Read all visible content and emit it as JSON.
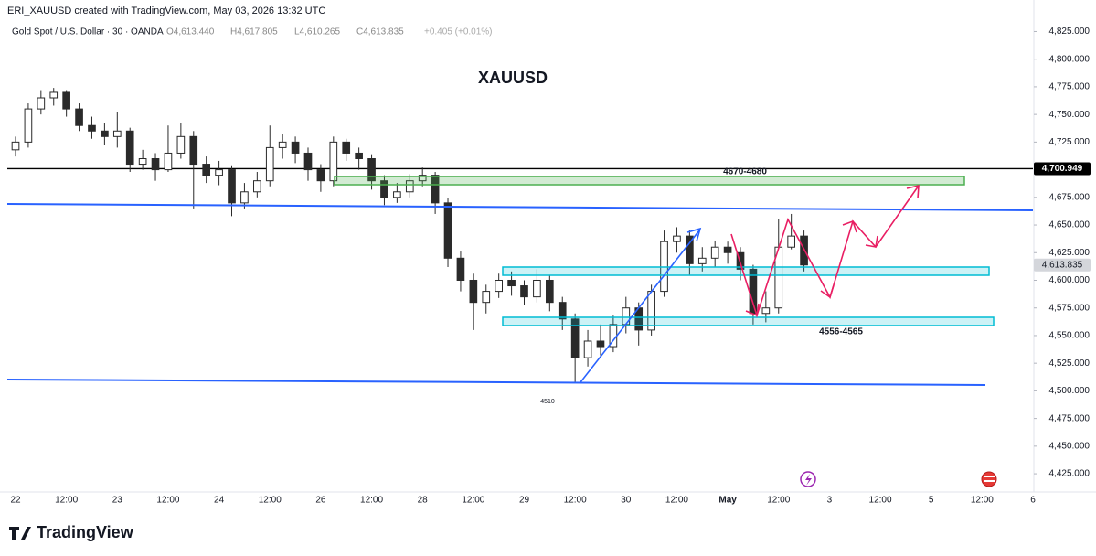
{
  "header": {
    "credit": "ERI_XAUUSD created with TradingView.com, May 03, 2026 13:32 UTC",
    "logo": "TradingView"
  },
  "chart_data": {
    "type": "candlestick",
    "title": "XAUUSD",
    "legend": {
      "symbol": "Gold Spot / U.S. Dollar · 30 · OANDA",
      "open": "O4,613.440",
      "high": "H4,617.805",
      "low": "L4,610.265",
      "close": "C4,613.835",
      "change": "+0.405 (+0.01%)"
    },
    "categories": [
      "22",
      null,
      null,
      null,
      "12:00",
      null,
      null,
      null,
      "23",
      null,
      null,
      null,
      "12:00",
      null,
      null,
      null,
      "24",
      null,
      null,
      null,
      "12:00",
      null,
      null,
      null,
      "26",
      null,
      null,
      null,
      "12:00",
      null,
      null,
      null,
      "28",
      null,
      null,
      null,
      "12:00",
      null,
      null,
      null,
      "29",
      null,
      null,
      null,
      "12:00",
      null,
      null,
      null,
      "30",
      null,
      null,
      null,
      "12:00",
      null,
      null,
      null,
      "May",
      null,
      null,
      null,
      "12:00",
      null,
      null,
      null,
      "3",
      null,
      null,
      null,
      "12:00",
      null,
      null,
      null,
      "5",
      null,
      null,
      null,
      "12:00",
      null,
      null,
      null,
      "6"
    ],
    "open": [
      4718,
      4725,
      4755,
      4765,
      4770,
      4755,
      4740,
      4735,
      4730,
      4735,
      4705,
      4710,
      4700,
      4715,
      4730,
      4705,
      4695,
      4700,
      4670,
      4680,
      4690,
      4720,
      4725,
      4715,
      4700,
      4690,
      4725,
      4715,
      4710,
      4690,
      4675,
      4680,
      4690,
      4695,
      4670,
      4620,
      4600,
      4580,
      4590,
      4600,
      4595,
      4585,
      4600,
      4580,
      4565,
      4530,
      4545,
      4540,
      4560,
      4575,
      4555,
      4590,
      4635,
      4640,
      4615,
      4620,
      4630,
      4625,
      4610,
      4570,
      4575,
      4630,
      4640,
      null,
      null,
      null,
      null,
      null,
      null,
      null,
      null,
      null,
      null,
      null,
      null,
      null,
      null,
      null,
      null,
      null,
      null
    ],
    "high": [
      4730,
      4760,
      4772,
      4774,
      4772,
      4760,
      4748,
      4742,
      4752,
      4738,
      4718,
      4715,
      4740,
      4742,
      4735,
      4712,
      4708,
      4704,
      4688,
      4698,
      4740,
      4732,
      4730,
      4720,
      4705,
      4730,
      4728,
      4720,
      4714,
      4695,
      4688,
      4696,
      4702,
      4698,
      4674,
      4626,
      4606,
      4596,
      4606,
      4608,
      4600,
      4610,
      4605,
      4585,
      4570,
      4555,
      4560,
      4568,
      4585,
      4580,
      4596,
      4645,
      4648,
      4645,
      4630,
      4636,
      4635,
      4630,
      4614,
      4590,
      4655,
      4660,
      4645,
      null,
      null,
      null,
      null,
      null,
      null,
      null,
      null,
      null,
      null,
      null,
      null,
      null,
      null,
      null,
      null,
      null,
      null
    ],
    "low": [
      4712,
      4720,
      4750,
      4758,
      4748,
      4735,
      4728,
      4722,
      4720,
      4698,
      4700,
      4690,
      4698,
      4710,
      4665,
      4688,
      4686,
      4658,
      4665,
      4675,
      4685,
      4710,
      4706,
      4690,
      4680,
      4685,
      4708,
      4700,
      4682,
      4668,
      4670,
      4675,
      4685,
      4660,
      4612,
      4590,
      4555,
      4570,
      4584,
      4586,
      4578,
      4580,
      4572,
      4555,
      4508,
      4522,
      4532,
      4535,
      4552,
      4541,
      4550,
      4585,
      4625,
      4605,
      4608,
      4612,
      4615,
      4600,
      4560,
      4562,
      4570,
      4628,
      4608,
      null,
      null,
      null,
      null,
      null,
      null,
      null,
      null,
      null,
      null,
      null,
      null,
      null,
      null,
      null,
      null,
      null,
      null
    ],
    "close": [
      4725,
      4755,
      4765,
      4770,
      4755,
      4740,
      4735,
      4730,
      4735,
      4705,
      4710,
      4700,
      4715,
      4730,
      4705,
      4695,
      4700,
      4670,
      4680,
      4690,
      4720,
      4725,
      4715,
      4700,
      4690,
      4725,
      4715,
      4710,
      4690,
      4675,
      4680,
      4690,
      4695,
      4670,
      4620,
      4600,
      4580,
      4590,
      4600,
      4595,
      4585,
      4600,
      4580,
      4565,
      4530,
      4545,
      4540,
      4560,
      4575,
      4555,
      4590,
      4635,
      4640,
      4615,
      4620,
      4630,
      4625,
      4610,
      4570,
      4575,
      4630,
      4640,
      4613.835,
      null,
      null,
      null,
      null,
      null,
      null,
      null,
      null,
      null,
      null,
      null,
      null,
      null,
      null,
      null,
      null,
      null,
      null
    ],
    "up_color": "#ffffff",
    "down_color": "#2a2a2a",
    "edge_color": "#2a2a2a",
    "ylim": [
      4411,
      4832
    ],
    "yticks": [
      {
        "value": 4425,
        "label": "4,425.000"
      },
      {
        "value": 4450,
        "label": "4,450.000"
      },
      {
        "value": 4475,
        "label": "4,475.000"
      },
      {
        "value": 4500,
        "label": "4,500.000"
      },
      {
        "value": 4525,
        "label": "4,525.000"
      },
      {
        "value": 4550,
        "label": "4,550.000"
      },
      {
        "value": 4575,
        "label": "4,575.000"
      },
      {
        "value": 4600,
        "label": "4,600.000"
      },
      {
        "value": 4625,
        "label": "4,625.000"
      },
      {
        "value": 4650,
        "label": "4,650.000"
      },
      {
        "value": 4675,
        "label": "4,675.000"
      },
      {
        "value": 4700,
        "label": "4,700.000"
      },
      {
        "value": 4725,
        "label": "4,725.000"
      },
      {
        "value": 4750,
        "label": "4,750.000"
      },
      {
        "value": 4775,
        "label": "4,775.000"
      },
      {
        "value": 4800,
        "label": "4,800.000"
      },
      {
        "value": 4825,
        "label": "4,825.000"
      }
    ],
    "price_line": {
      "value": 4700.949,
      "label": "4,700.949",
      "color": "#000000"
    },
    "last_price": {
      "value": 4613.835,
      "label": "4,613.835",
      "color": "#d4d6db"
    },
    "annotations": {
      "upper_zone": "4670-4680",
      "lower_zone": "4556-4565",
      "low": "4510"
    }
  }
}
